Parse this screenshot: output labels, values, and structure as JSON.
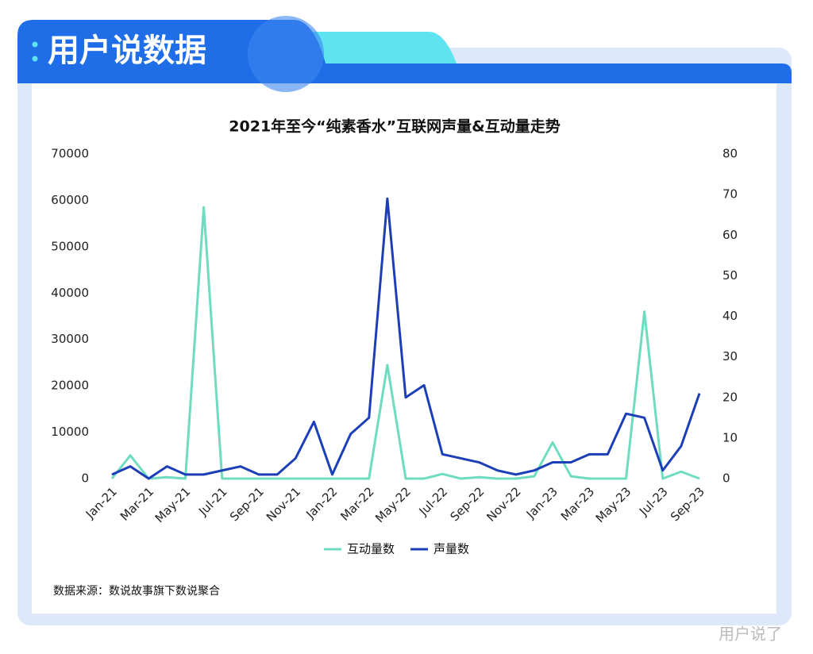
{
  "header": {
    "title": "用户说数据"
  },
  "chart_data": {
    "type": "line",
    "title": "2021年至今“纯素香水”互联网声量&互动量走势",
    "categories": [
      "Jan-21",
      null,
      "Mar-21",
      null,
      "May-21",
      null,
      "Jul-21",
      null,
      "Sep-21",
      null,
      "Nov-21",
      null,
      "Jan-22",
      null,
      "Mar-22",
      null,
      "May-22",
      null,
      "Jul-22",
      null,
      "Sep-22",
      null,
      "Nov-22",
      null,
      "Jan-23",
      null,
      "Mar-23",
      null,
      "May-23",
      null,
      "Jul-23",
      null,
      "Sep-23"
    ],
    "series": [
      {
        "name": "互动量数",
        "color": "#6fdcc0",
        "values": [
          0,
          5000,
          0,
          300,
          0,
          58500,
          0,
          0,
          0,
          0,
          0,
          0,
          0,
          0,
          0,
          24500,
          0,
          0,
          1000,
          0,
          300,
          0,
          0,
          500,
          7800,
          500,
          0,
          0,
          0,
          36000,
          0,
          1500,
          0
        ]
      },
      {
        "name": "声量数",
        "color": "#1c3fb8",
        "axis": "y2",
        "values": [
          1,
          3,
          0,
          3,
          1,
          1,
          2,
          3,
          1,
          1,
          5,
          14,
          1,
          11,
          15,
          69,
          20,
          23,
          6,
          5,
          4,
          2,
          1,
          2,
          4,
          4,
          6,
          6,
          16,
          15,
          2,
          8,
          21
        ]
      }
    ],
    "ylim": [
      0,
      70000
    ],
    "yticks": [
      0,
      10000,
      20000,
      30000,
      40000,
      50000,
      60000,
      70000
    ],
    "y2lim": [
      0,
      80
    ],
    "y2ticks": [
      0,
      10,
      20,
      30,
      40,
      50,
      60,
      70,
      80
    ],
    "grid": false,
    "legend": "bottom"
  },
  "footer": {
    "source": "数据来源：数说故事旗下数说聚合",
    "watermark": "用户说了"
  }
}
